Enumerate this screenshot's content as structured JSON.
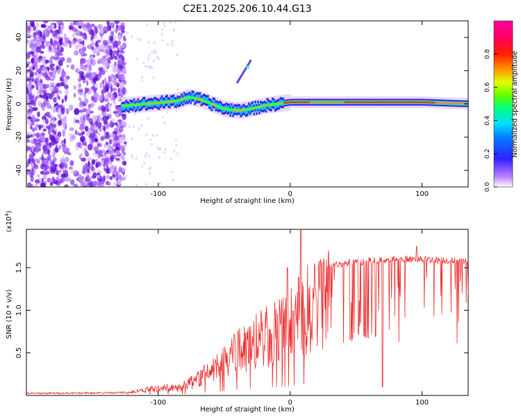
{
  "title": "C2E1.2025.206.10.44.G13",
  "chart_data": [
    {
      "type": "heatmap",
      "xlabel": "Height of straight line (km)",
      "ylabel": "Frequency (Hz)",
      "xlim": [
        -200,
        135
      ],
      "ylim": [
        -50,
        50
      ],
      "xticks": [
        -100,
        0,
        100
      ],
      "yticks": [
        -40,
        -20,
        0,
        20,
        40
      ],
      "colorbar": {
        "label": "Normalized spectral amplitude",
        "range": [
          0,
          1
        ],
        "ticks": [
          0.0,
          0.2,
          0.4,
          0.6,
          0.8
        ],
        "colors": [
          "#ffffff",
          "#a040ff",
          "#2020ff",
          "#00d8ff",
          "#00ff80",
          "#80ff00",
          "#ffff00",
          "#ff8000",
          "#ff0000",
          "#ff0090"
        ]
      },
      "ridge": [
        {
          "x": -125,
          "y": -1
        },
        {
          "x": -110,
          "y": 0
        },
        {
          "x": -95,
          "y": 1
        },
        {
          "x": -85,
          "y": 2
        },
        {
          "x": -78,
          "y": 4
        },
        {
          "x": -70,
          "y": 3
        },
        {
          "x": -60,
          "y": 0
        },
        {
          "x": -50,
          "y": -3
        },
        {
          "x": -40,
          "y": -4
        },
        {
          "x": -30,
          "y": -3
        },
        {
          "x": -20,
          "y": -1
        },
        {
          "x": -10,
          "y": 0
        },
        {
          "x": 0,
          "y": 1
        },
        {
          "x": 20,
          "y": 1
        },
        {
          "x": 60,
          "y": 1
        },
        {
          "x": 100,
          "y": 1
        },
        {
          "x": 135,
          "y": 0
        }
      ],
      "artifact": {
        "x1": -40,
        "y1": 13,
        "x2": -30,
        "y2": 26
      }
    },
    {
      "type": "line",
      "xlabel": "Height of straight line (km)",
      "ylabel": "SNR (10 * v/v)",
      "yscale_label": "(x10",
      "yscale_exp": "4",
      "xlim": [
        -200,
        135
      ],
      "ylim": [
        0,
        1.95
      ],
      "xticks": [
        -100,
        0,
        100
      ],
      "yticks": [
        0.5,
        1.0,
        1.5
      ],
      "ytick_labels": [
        "0.5",
        "1.0",
        "1.5"
      ],
      "color": "#ee2a2a",
      "envelope": [
        {
          "x": -200,
          "y": 0.02
        },
        {
          "x": -125,
          "y": 0.03
        },
        {
          "x": -105,
          "y": 0.1
        },
        {
          "x": -85,
          "y": 0.12
        },
        {
          "x": -70,
          "y": 0.25
        },
        {
          "x": -55,
          "y": 0.45
        },
        {
          "x": -40,
          "y": 0.7
        },
        {
          "x": -20,
          "y": 0.9
        },
        {
          "x": 0,
          "y": 1.1
        },
        {
          "x": 10,
          "y": 1.3
        },
        {
          "x": 20,
          "y": 1.42
        },
        {
          "x": 30,
          "y": 1.52
        },
        {
          "x": 45,
          "y": 1.56
        },
        {
          "x": 60,
          "y": 1.58
        },
        {
          "x": 80,
          "y": 1.6
        },
        {
          "x": 100,
          "y": 1.6
        },
        {
          "x": 135,
          "y": 1.57
        }
      ],
      "peaks": [
        {
          "x": 8,
          "y": 1.95
        },
        {
          "x": -2,
          "y": 1.5
        },
        {
          "x": 96,
          "y": 1.75
        }
      ]
    }
  ]
}
